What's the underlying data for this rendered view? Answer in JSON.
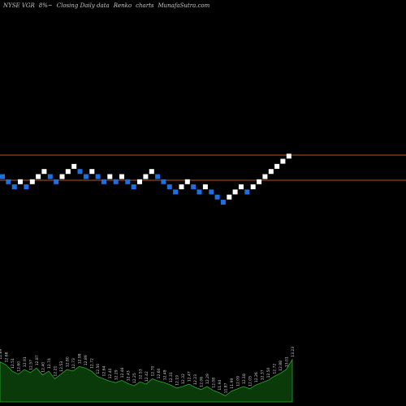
{
  "header": {
    "ticker": "NYSE VGR",
    "change": "8%~",
    "caption": "Closing Daily data",
    "chart_kind": "Renko",
    "suffix": "charts",
    "source": "MunafaSutra.com"
  },
  "colors": {
    "background": "#000000",
    "up_brick": "#ffffff",
    "down_brick": "#1e6fe0",
    "reference_line": "#b8561e",
    "volume_fill": "#0a3a0a",
    "volume_line": "#2ea82e",
    "volume_label": "#cfcfcf"
  },
  "chart_data": {
    "type": "renko",
    "reference_lines": [
      "upper",
      "lower"
    ],
    "bricks": [
      {
        "level": 0,
        "dir": "down"
      },
      {
        "level": -1,
        "dir": "down"
      },
      {
        "level": -2,
        "dir": "down"
      },
      {
        "level": -1,
        "dir": "up"
      },
      {
        "level": -2,
        "dir": "down"
      },
      {
        "level": -1,
        "dir": "up"
      },
      {
        "level": 0,
        "dir": "up"
      },
      {
        "level": 1,
        "dir": "up"
      },
      {
        "level": 0,
        "dir": "down"
      },
      {
        "level": -1,
        "dir": "down"
      },
      {
        "level": 0,
        "dir": "up"
      },
      {
        "level": 1,
        "dir": "up"
      },
      {
        "level": 2,
        "dir": "up"
      },
      {
        "level": 1,
        "dir": "down"
      },
      {
        "level": 0,
        "dir": "down"
      },
      {
        "level": 1,
        "dir": "up"
      },
      {
        "level": 0,
        "dir": "down"
      },
      {
        "level": -1,
        "dir": "down"
      },
      {
        "level": 0,
        "dir": "up"
      },
      {
        "level": -1,
        "dir": "down"
      },
      {
        "level": 0,
        "dir": "up"
      },
      {
        "level": -1,
        "dir": "down"
      },
      {
        "level": -2,
        "dir": "down"
      },
      {
        "level": -1,
        "dir": "up"
      },
      {
        "level": 0,
        "dir": "up"
      },
      {
        "level": 1,
        "dir": "up"
      },
      {
        "level": 0,
        "dir": "down"
      },
      {
        "level": -1,
        "dir": "down"
      },
      {
        "level": -2,
        "dir": "down"
      },
      {
        "level": -3,
        "dir": "down"
      },
      {
        "level": -2,
        "dir": "up"
      },
      {
        "level": -1,
        "dir": "up"
      },
      {
        "level": -2,
        "dir": "down"
      },
      {
        "level": -3,
        "dir": "down"
      },
      {
        "level": -2,
        "dir": "up"
      },
      {
        "level": -3,
        "dir": "down"
      },
      {
        "level": -4,
        "dir": "down"
      },
      {
        "level": -5,
        "dir": "down"
      },
      {
        "level": -4,
        "dir": "up"
      },
      {
        "level": -3,
        "dir": "up"
      },
      {
        "level": -2,
        "dir": "up"
      },
      {
        "level": -3,
        "dir": "down"
      },
      {
        "level": -2,
        "dir": "up"
      },
      {
        "level": -1,
        "dir": "up"
      },
      {
        "level": 0,
        "dir": "up"
      },
      {
        "level": 1,
        "dir": "up"
      },
      {
        "level": 2,
        "dir": "up"
      },
      {
        "level": 3,
        "dir": "up"
      },
      {
        "level": 4,
        "dir": "up"
      }
    ],
    "volume": [
      {
        "label": "12.89",
        "v": 0.52
      },
      {
        "label": "12.68",
        "v": 0.48
      },
      {
        "label": "12.51",
        "v": 0.4
      },
      {
        "label": "12.60",
        "v": 0.36
      },
      {
        "label": "12.91",
        "v": 0.42
      },
      {
        "label": "12.57",
        "v": 0.38
      },
      {
        "label": "12.87",
        "v": 0.44
      },
      {
        "label": "12.40",
        "v": 0.35
      },
      {
        "label": "12.74",
        "v": 0.4
      },
      {
        "label": "12.21",
        "v": 0.3
      },
      {
        "label": "12.53",
        "v": 0.36
      },
      {
        "label": "12.80",
        "v": 0.42
      },
      {
        "label": "12.73",
        "v": 0.4
      },
      {
        "label": "12.98",
        "v": 0.46
      },
      {
        "label": "12.89",
        "v": 0.44
      },
      {
        "label": "12.72",
        "v": 0.4
      },
      {
        "label": "12.50",
        "v": 0.33
      },
      {
        "label": "12.64",
        "v": 0.3
      },
      {
        "label": "12.40",
        "v": 0.27
      },
      {
        "label": "12.29",
        "v": 0.25
      },
      {
        "label": "12.46",
        "v": 0.28
      },
      {
        "label": "12.43",
        "v": 0.24
      },
      {
        "label": "12.25",
        "v": 0.21
      },
      {
        "label": "12.53",
        "v": 0.26
      },
      {
        "label": "12.42",
        "v": 0.23
      },
      {
        "label": "12.70",
        "v": 0.3
      },
      {
        "label": "12.60",
        "v": 0.27
      },
      {
        "label": "12.48",
        "v": 0.25
      },
      {
        "label": "12.31",
        "v": 0.22
      },
      {
        "label": "12.19",
        "v": 0.18
      },
      {
        "label": "12.32",
        "v": 0.2
      },
      {
        "label": "12.47",
        "v": 0.23
      },
      {
        "label": "12.23",
        "v": 0.19
      },
      {
        "label": "12.06",
        "v": 0.16
      },
      {
        "label": "12.29",
        "v": 0.2
      },
      {
        "label": "12.08",
        "v": 0.15
      },
      {
        "label": "11.94",
        "v": 0.12
      },
      {
        "label": "11.87",
        "v": 0.08
      },
      {
        "label": "11.99",
        "v": 0.14
      },
      {
        "label": "12.09",
        "v": 0.17
      },
      {
        "label": "12.18",
        "v": 0.2
      },
      {
        "label": "12.05",
        "v": 0.17
      },
      {
        "label": "12.26",
        "v": 0.22
      },
      {
        "label": "12.37",
        "v": 0.25
      },
      {
        "label": "12.50",
        "v": 0.28
      },
      {
        "label": "12.72",
        "v": 0.33
      },
      {
        "label": "12.88",
        "v": 0.37
      },
      {
        "label": "13.01",
        "v": 0.42
      },
      {
        "label": "13.23",
        "v": 0.55
      }
    ]
  }
}
